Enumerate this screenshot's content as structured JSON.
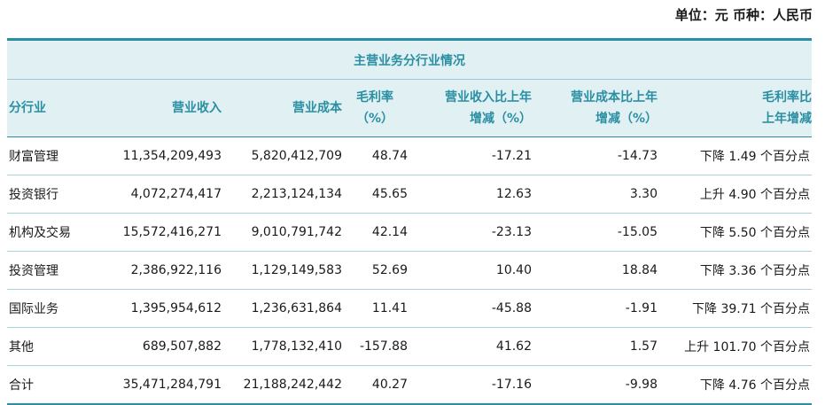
{
  "unit_label": "单位：元  币种：人民币",
  "banner": "主营业务分行业情况",
  "headers": {
    "segment": "分行业",
    "revenue": "营业收入",
    "cost": "营业成本",
    "margin": [
      "毛利率",
      "（%）"
    ],
    "rev_change": [
      "营业收入比上年",
      "增减（%）"
    ],
    "cost_change": [
      "营业成本比上年",
      "增减（%）"
    ],
    "margin_change": [
      "毛利率比",
      "上年增减"
    ]
  },
  "rows": [
    {
      "segment": "财富管理",
      "revenue": "11,354,209,493",
      "cost": "5,820,412,709",
      "margin": "48.74",
      "rev_change": "-17.21",
      "cost_change": "-14.73",
      "margin_change": "下降 1.49 个百分点"
    },
    {
      "segment": "投资银行",
      "revenue": "4,072,274,417",
      "cost": "2,213,124,134",
      "margin": "45.65",
      "rev_change": "12.63",
      "cost_change": "3.30",
      "margin_change": "上升 4.90 个百分点"
    },
    {
      "segment": "机构及交易",
      "revenue": "15,572,416,271",
      "cost": "9,010,791,742",
      "margin": "42.14",
      "rev_change": "-23.13",
      "cost_change": "-15.05",
      "margin_change": "下降 5.50 个百分点"
    },
    {
      "segment": "投资管理",
      "revenue": "2,386,922,116",
      "cost": "1,129,149,583",
      "margin": "52.69",
      "rev_change": "10.40",
      "cost_change": "18.84",
      "margin_change": "下降 3.36 个百分点"
    },
    {
      "segment": "国际业务",
      "revenue": "1,395,954,612",
      "cost": "1,236,631,864",
      "margin": "11.41",
      "rev_change": "-45.88",
      "cost_change": "-1.91",
      "margin_change": "下降 39.71 个百分点"
    },
    {
      "segment": "其他",
      "revenue": "689,507,882",
      "cost": "1,778,132,410",
      "margin": "-157.88",
      "rev_change": "41.62",
      "cost_change": "1.57",
      "margin_change": "上升 101.70 个百分点"
    },
    {
      "segment": "合计",
      "revenue": "35,471,284,791",
      "cost": "21,188,242,442",
      "margin": "40.27",
      "rev_change": "-17.16",
      "cost_change": "-9.98",
      "margin_change": "下降 4.76 个百分点"
    }
  ]
}
